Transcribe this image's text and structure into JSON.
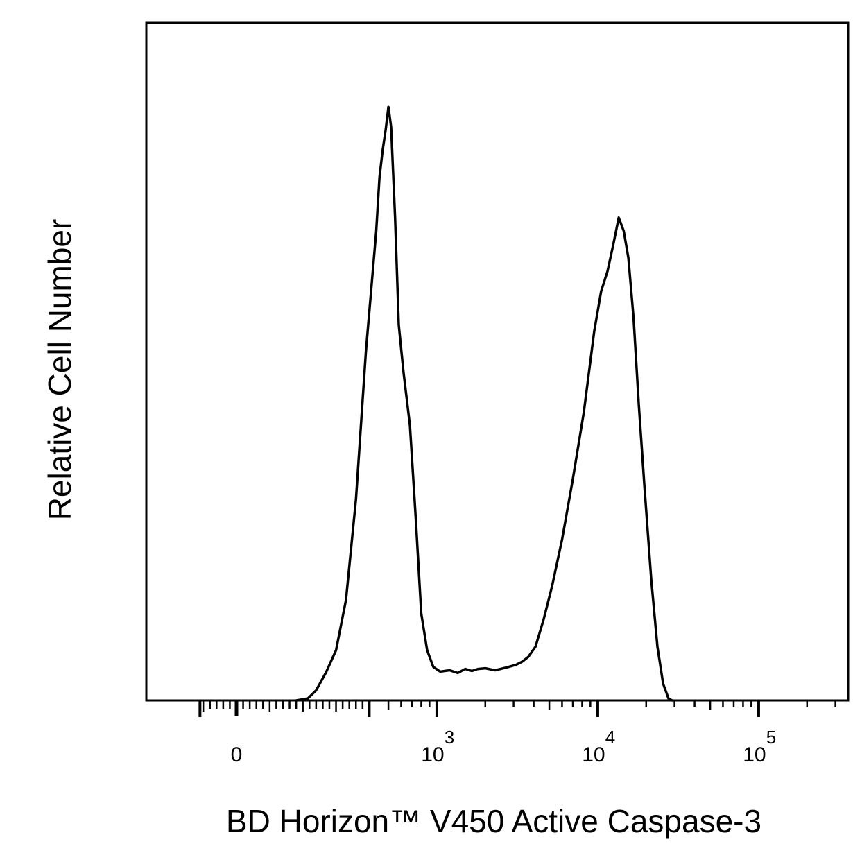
{
  "chart_data": {
    "type": "area",
    "xlabel": "BD Horizon™ V450 Active Caspase-3",
    "ylabel": "Relative Cell Number",
    "x_scale": "biexponential",
    "y_scale": "linear",
    "x_tick_labels": [
      {
        "value": 0,
        "base": "0",
        "exp": ""
      },
      {
        "value": 1000,
        "base": "10",
        "exp": "3"
      },
      {
        "value": 10000,
        "base": "10",
        "exp": "4"
      },
      {
        "value": 100000,
        "base": "10",
        "exp": "5"
      }
    ],
    "x_range": [
      -110,
      210000
    ],
    "y_range": [
      0,
      100
    ],
    "grid": false,
    "legend": "none",
    "line_color": "#000000",
    "series": [
      {
        "points": [
          [
            180,
            0
          ],
          [
            215,
            0.3
          ],
          [
            240,
            1.5
          ],
          [
            270,
            4.2
          ],
          [
            300,
            7.5
          ],
          [
            330,
            15
          ],
          [
            360,
            30
          ],
          [
            390,
            52
          ],
          [
            420,
            70
          ],
          [
            440,
            78
          ],
          [
            460,
            82
          ],
          [
            480,
            85
          ],
          [
            500,
            88.5
          ],
          [
            520,
            85.5
          ],
          [
            550,
            72
          ],
          [
            580,
            56
          ],
          [
            620,
            49
          ],
          [
            680,
            41
          ],
          [
            740,
            27
          ],
          [
            800,
            13
          ],
          [
            870,
            7.5
          ],
          [
            950,
            5
          ],
          [
            1050,
            4.3
          ],
          [
            1200,
            4.5
          ],
          [
            1350,
            4.1
          ],
          [
            1500,
            4.7
          ],
          [
            1650,
            4.4
          ],
          [
            1800,
            4.7
          ],
          [
            2000,
            4.8
          ],
          [
            2300,
            4.5
          ],
          [
            2700,
            4.9
          ],
          [
            3100,
            5.3
          ],
          [
            3400,
            5.8
          ],
          [
            3700,
            6.5
          ],
          [
            4100,
            8
          ],
          [
            4600,
            12
          ],
          [
            5200,
            17
          ],
          [
            6000,
            24
          ],
          [
            7000,
            33
          ],
          [
            8200,
            43
          ],
          [
            9500,
            55
          ],
          [
            10500,
            61
          ],
          [
            11500,
            64
          ],
          [
            12500,
            68
          ],
          [
            13500,
            72
          ],
          [
            14500,
            70
          ],
          [
            15500,
            66
          ],
          [
            16700,
            57
          ],
          [
            18000,
            44
          ],
          [
            19500,
            32
          ],
          [
            21500,
            18
          ],
          [
            23500,
            8
          ],
          [
            25500,
            2.5
          ],
          [
            27500,
            0.3
          ],
          [
            29000,
            0
          ]
        ]
      }
    ]
  }
}
